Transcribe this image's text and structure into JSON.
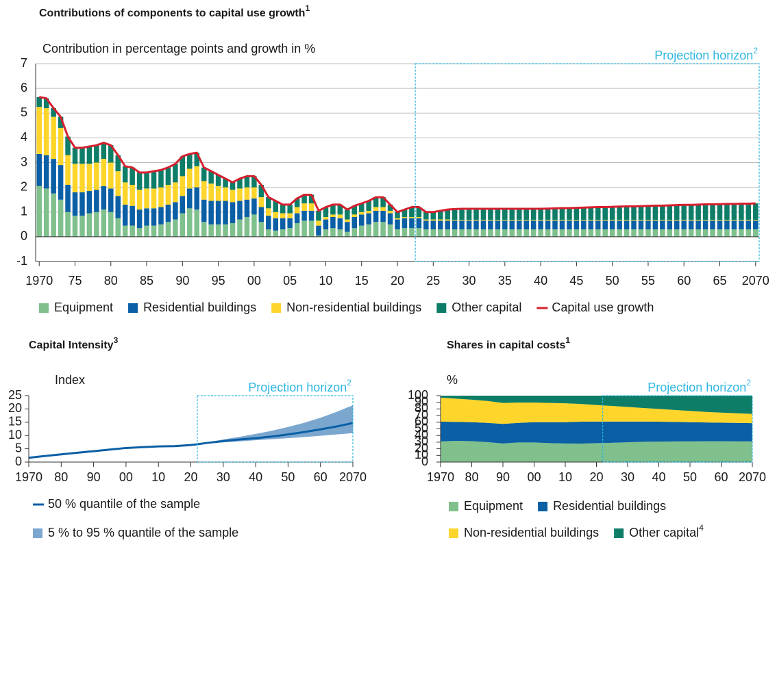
{
  "chart_data": [
    {
      "type": "bar",
      "title": "Contributions of components to capital use growth",
      "title_note": "1",
      "y_label": "Contribution in percentage points and growth in %",
      "annotation": "Projection horizon",
      "annotation_note": "2",
      "projection_start": 2022.5,
      "xlim": [
        1969.5,
        2070.5
      ],
      "ylim": [
        -1,
        7
      ],
      "grid": true,
      "stacked": true,
      "yticks": [
        -1,
        0,
        1,
        2,
        3,
        4,
        5,
        6,
        7
      ],
      "xticks": [
        1970,
        {
          "value": 1975,
          "label": "75"
        },
        {
          "value": 1980,
          "label": "80"
        },
        {
          "value": 1985,
          "label": "85"
        },
        {
          "value": 1990,
          "label": "90"
        },
        {
          "value": 1995,
          "label": "95"
        },
        {
          "value": 2000,
          "label": "00"
        },
        {
          "value": 2005,
          "label": "05"
        },
        {
          "value": 2010,
          "label": "10"
        },
        {
          "value": 2015,
          "label": "15"
        },
        {
          "value": 2020,
          "label": "20"
        },
        {
          "value": 2025,
          "label": "25"
        },
        {
          "value": 2030,
          "label": "30"
        },
        {
          "value": 2035,
          "label": "35"
        },
        {
          "value": 2040,
          "label": "40"
        },
        {
          "value": 2045,
          "label": "45"
        },
        {
          "value": 2050,
          "label": "50"
        },
        {
          "value": 2055,
          "label": "55"
        },
        {
          "value": 2060,
          "label": "60"
        },
        {
          "value": 2065,
          "label": "65"
        },
        2070
      ],
      "x": [
        1970,
        1971,
        1972,
        1973,
        1974,
        1975,
        1976,
        1977,
        1978,
        1979,
        1980,
        1981,
        1982,
        1983,
        1984,
        1985,
        1986,
        1987,
        1988,
        1989,
        1990,
        1991,
        1992,
        1993,
        1994,
        1995,
        1996,
        1997,
        1998,
        1999,
        2000,
        2001,
        2002,
        2003,
        2004,
        2005,
        2006,
        2007,
        2008,
        2009,
        2010,
        2011,
        2012,
        2013,
        2014,
        2015,
        2016,
        2017,
        2018,
        2019,
        2020,
        2021,
        2022,
        2023,
        2024,
        2025,
        2026,
        2027,
        2028,
        2029,
        2030,
        2031,
        2032,
        2033,
        2034,
        2035,
        2036,
        2037,
        2038,
        2039,
        2040,
        2041,
        2042,
        2043,
        2044,
        2045,
        2046,
        2047,
        2048,
        2049,
        2050,
        2051,
        2052,
        2053,
        2054,
        2055,
        2056,
        2057,
        2058,
        2059,
        2060,
        2061,
        2062,
        2063,
        2064,
        2065,
        2066,
        2067,
        2068,
        2069,
        2070
      ],
      "series": [
        {
          "name": "Equipment",
          "color": "#7fc08d",
          "values": [
            2.05,
            1.95,
            1.75,
            1.5,
            1.0,
            0.85,
            0.85,
            0.95,
            1.0,
            1.1,
            1.0,
            0.75,
            0.45,
            0.45,
            0.35,
            0.45,
            0.45,
            0.5,
            0.6,
            0.7,
            0.95,
            1.15,
            1.1,
            0.6,
            0.5,
            0.5,
            0.5,
            0.55,
            0.7,
            0.8,
            0.9,
            0.6,
            0.3,
            0.25,
            0.3,
            0.35,
            0.55,
            0.65,
            0.65,
            0.05,
            0.3,
            0.35,
            0.3,
            0.2,
            0.35,
            0.45,
            0.5,
            0.6,
            0.6,
            0.5,
            0.3,
            0.35,
            0.35,
            0.35,
            0.3,
            0.3,
            0.3,
            0.3,
            0.3,
            0.3,
            0.3,
            0.3,
            0.3,
            0.3,
            0.3,
            0.3,
            0.3,
            0.3,
            0.3,
            0.3,
            0.3,
            0.3,
            0.3,
            0.3,
            0.3,
            0.3,
            0.3,
            0.3,
            0.3,
            0.3,
            0.3,
            0.3,
            0.3,
            0.3,
            0.3,
            0.3,
            0.3,
            0.3,
            0.3,
            0.3,
            0.3,
            0.3,
            0.3,
            0.3,
            0.3,
            0.3,
            0.3,
            0.3,
            0.3,
            0.3,
            0.3
          ]
        },
        {
          "name": "Residential buildings",
          "color": "#0a5fa5",
          "values": [
            1.3,
            1.35,
            1.4,
            1.4,
            1.1,
            0.95,
            0.95,
            0.9,
            0.9,
            0.95,
            0.95,
            0.9,
            0.85,
            0.8,
            0.75,
            0.7,
            0.7,
            0.7,
            0.7,
            0.7,
            0.7,
            0.8,
            0.9,
            0.9,
            0.95,
            0.95,
            0.95,
            0.85,
            0.75,
            0.7,
            0.65,
            0.6,
            0.55,
            0.5,
            0.45,
            0.4,
            0.4,
            0.4,
            0.4,
            0.4,
            0.4,
            0.45,
            0.45,
            0.4,
            0.45,
            0.45,
            0.45,
            0.45,
            0.45,
            0.45,
            0.4,
            0.4,
            0.4,
            0.4,
            0.35,
            0.35,
            0.35,
            0.35,
            0.35,
            0.35,
            0.35,
            0.35,
            0.35,
            0.35,
            0.35,
            0.35,
            0.35,
            0.35,
            0.35,
            0.35,
            0.35,
            0.35,
            0.35,
            0.35,
            0.35,
            0.35,
            0.35,
            0.35,
            0.35,
            0.35,
            0.35,
            0.35,
            0.35,
            0.35,
            0.35,
            0.35,
            0.35,
            0.35,
            0.35,
            0.35,
            0.35,
            0.35,
            0.35,
            0.35,
            0.35,
            0.35,
            0.35,
            0.35,
            0.35,
            0.35,
            0.35
          ]
        },
        {
          "name": "Non-residential buildings",
          "color": "#fdd52b",
          "values": [
            1.9,
            1.9,
            1.7,
            1.5,
            1.2,
            1.15,
            1.15,
            1.1,
            1.1,
            1.1,
            1.05,
            1.0,
            0.9,
            0.85,
            0.8,
            0.8,
            0.8,
            0.8,
            0.8,
            0.8,
            0.8,
            0.8,
            0.85,
            0.75,
            0.7,
            0.6,
            0.55,
            0.5,
            0.5,
            0.5,
            0.45,
            0.4,
            0.3,
            0.25,
            0.2,
            0.2,
            0.25,
            0.3,
            0.3,
            0.2,
            0.1,
            0.1,
            0.15,
            0.1,
            0.1,
            0.1,
            0.1,
            0.15,
            0.15,
            0.1,
            0.05,
            0.05,
            0.05,
            0.05,
            0.05,
            0.05,
            0.05,
            0.05,
            0.03,
            0.03,
            0.03,
            0.03,
            0.03,
            0.03,
            0.03,
            0.03,
            0.03,
            0.03,
            0.03,
            0.03,
            0.03,
            0.03,
            0.03,
            0.03,
            0.03,
            0.03,
            0.03,
            0.03,
            0.03,
            0.03,
            0.03,
            0.03,
            0.03,
            0.03,
            0.03,
            0.03,
            0.03,
            0.03,
            0.03,
            0.03,
            0.03,
            0.03,
            0.03,
            0.03,
            0.03,
            0.03,
            0.03,
            0.03,
            0.03,
            0.03,
            0.03
          ]
        },
        {
          "name": "Other capital",
          "color": "#0d7d68",
          "values": [
            0.4,
            0.4,
            0.35,
            0.45,
            0.75,
            0.65,
            0.65,
            0.7,
            0.7,
            0.65,
            0.7,
            0.65,
            0.65,
            0.7,
            0.7,
            0.65,
            0.7,
            0.7,
            0.7,
            0.75,
            0.8,
            0.6,
            0.55,
            0.55,
            0.5,
            0.45,
            0.35,
            0.3,
            0.4,
            0.45,
            0.45,
            0.5,
            0.45,
            0.45,
            0.35,
            0.35,
            0.35,
            0.35,
            0.35,
            0.4,
            0.4,
            0.4,
            0.4,
            0.4,
            0.35,
            0.35,
            0.4,
            0.4,
            0.4,
            0.25,
            0.25,
            0.3,
            0.4,
            0.4,
            0.3,
            0.3,
            0.35,
            0.4,
            0.44,
            0.45,
            0.45,
            0.45,
            0.45,
            0.45,
            0.45,
            0.45,
            0.45,
            0.45,
            0.45,
            0.45,
            0.45,
            0.46,
            0.47,
            0.48,
            0.48,
            0.49,
            0.5,
            0.51,
            0.52,
            0.52,
            0.53,
            0.54,
            0.55,
            0.55,
            0.56,
            0.57,
            0.58,
            0.58,
            0.59,
            0.6,
            0.61,
            0.61,
            0.62,
            0.63,
            0.63,
            0.64,
            0.65,
            0.65,
            0.66,
            0.66,
            0.67
          ]
        },
        {
          "name": "Capital use growth",
          "color": "#d61f2e",
          "type": "line",
          "values": [
            5.65,
            5.6,
            5.2,
            4.85,
            4.05,
            3.6,
            3.6,
            3.65,
            3.7,
            3.8,
            3.7,
            3.3,
            2.85,
            2.8,
            2.6,
            2.6,
            2.65,
            2.7,
            2.8,
            2.95,
            3.25,
            3.35,
            3.4,
            2.8,
            2.65,
            2.5,
            2.35,
            2.2,
            2.35,
            2.45,
            2.45,
            2.1,
            1.6,
            1.45,
            1.3,
            1.3,
            1.55,
            1.7,
            1.7,
            1.05,
            1.2,
            1.3,
            1.3,
            1.1,
            1.25,
            1.35,
            1.45,
            1.6,
            1.6,
            1.3,
            1.0,
            1.1,
            1.2,
            1.2,
            1.0,
            1.0,
            1.05,
            1.1,
            1.12,
            1.13,
            1.13,
            1.13,
            1.13,
            1.13,
            1.13,
            1.13,
            1.13,
            1.13,
            1.13,
            1.13,
            1.13,
            1.14,
            1.15,
            1.16,
            1.16,
            1.17,
            1.18,
            1.19,
            1.2,
            1.2,
            1.21,
            1.22,
            1.23,
            1.23,
            1.24,
            1.25,
            1.26,
            1.26,
            1.27,
            1.28,
            1.29,
            1.29,
            1.3,
            1.31,
            1.31,
            1.32,
            1.33,
            1.33,
            1.34,
            1.34,
            1.35
          ]
        }
      ]
    },
    {
      "type": "line",
      "title": "Capital Intensity",
      "title_note": "3",
      "y_label": "Index",
      "annotation": "Projection horizon",
      "annotation_note": "2",
      "projection_start": 2022,
      "xlim": [
        1970,
        2070
      ],
      "ylim": [
        0,
        25
      ],
      "grid": false,
      "yticks": [
        0,
        5,
        10,
        15,
        20,
        25
      ],
      "xticks": [
        1970,
        {
          "value": 1980,
          "label": "80"
        },
        {
          "value": 1990,
          "label": "90"
        },
        {
          "value": 2000,
          "label": "00"
        },
        {
          "value": 2010,
          "label": "10"
        },
        {
          "value": 2020,
          "label": "20"
        },
        {
          "value": 2030,
          "label": "30"
        },
        {
          "value": 2040,
          "label": "40"
        },
        {
          "value": 2050,
          "label": "50"
        },
        {
          "value": 2060,
          "label": "60"
        },
        2070
      ],
      "x": [
        1970,
        1975,
        1980,
        1985,
        1990,
        1995,
        2000,
        2005,
        2010,
        2015,
        2020,
        2022,
        2025,
        2030,
        2035,
        2040,
        2045,
        2050,
        2055,
        2060,
        2065,
        2070
      ],
      "series": [
        {
          "name": "50 % quantile of the sample",
          "color": "#0a5fa5",
          "values": [
            1.6,
            2.3,
            2.9,
            3.5,
            4.1,
            4.7,
            5.3,
            5.6,
            5.9,
            6.0,
            6.4,
            6.7,
            7.2,
            7.9,
            8.5,
            9.0,
            9.6,
            10.4,
            11.3,
            12.3,
            13.4,
            14.7
          ]
        },
        {
          "name": "5 % to 95 % quantile of the sample",
          "color": "#7ba7cf",
          "lower": [
            null,
            null,
            null,
            null,
            null,
            null,
            null,
            null,
            null,
            null,
            null,
            6.7,
            7.0,
            7.4,
            7.8,
            8.2,
            8.6,
            9.0,
            9.4,
            9.9,
            10.4,
            10.9
          ],
          "upper": [
            null,
            null,
            null,
            null,
            null,
            null,
            null,
            null,
            null,
            null,
            null,
            6.7,
            7.4,
            8.5,
            9.5,
            10.6,
            11.8,
            13.2,
            14.8,
            16.7,
            18.9,
            21.4
          ]
        }
      ]
    },
    {
      "type": "area",
      "title": "Shares in capital costs",
      "title_note": "1",
      "y_label": "%",
      "annotation": "Projection horizon",
      "annotation_note": "2",
      "projection_start": 2022,
      "xlim": [
        1970,
        2070
      ],
      "ylim": [
        0,
        100
      ],
      "grid": false,
      "stacked": true,
      "yticks": [
        0,
        10,
        20,
        30,
        40,
        50,
        60,
        70,
        80,
        90,
        100
      ],
      "xticks": [
        1970,
        {
          "value": 1980,
          "label": "80"
        },
        {
          "value": 1990,
          "label": "90"
        },
        {
          "value": 2000,
          "label": "00"
        },
        {
          "value": 2010,
          "label": "10"
        },
        {
          "value": 2020,
          "label": "20"
        },
        {
          "value": 2030,
          "label": "30"
        },
        {
          "value": 2040,
          "label": "40"
        },
        {
          "value": 2050,
          "label": "50"
        },
        {
          "value": 2060,
          "label": "60"
        },
        2070
      ],
      "x": [
        1970,
        1975,
        1980,
        1985,
        1990,
        1995,
        2000,
        2005,
        2010,
        2015,
        2020,
        2025,
        2030,
        2035,
        2040,
        2045,
        2050,
        2055,
        2060,
        2065,
        2070
      ],
      "series": [
        {
          "name": "Equipment",
          "color": "#7fc08d",
          "values": [
            31,
            32,
            31.5,
            30,
            28,
            29.5,
            29.5,
            28.5,
            28,
            27.8,
            28.5,
            29,
            29.8,
            30.5,
            30.8,
            31,
            31.2,
            31.3,
            31.3,
            31.2,
            31
          ]
        },
        {
          "name": "Residential buildings",
          "color": "#0a5fa5",
          "values": [
            30,
            28.5,
            28.5,
            29,
            29.5,
            29.5,
            30.5,
            31.5,
            32,
            33,
            32.5,
            32,
            31.2,
            30.5,
            30,
            29.5,
            28.8,
            28.4,
            28,
            27.8,
            27.6
          ]
        },
        {
          "name": "Non-residential buildings",
          "color": "#fdd52b",
          "values": [
            36,
            35,
            34,
            33,
            31.5,
            30.5,
            29.5,
            29,
            28.5,
            26.7,
            25,
            23.5,
            22,
            20.5,
            19.2,
            18,
            17,
            15.8,
            15.2,
            14.5,
            13.9
          ]
        },
        {
          "name": "Other capital",
          "note": "4",
          "color": "#0d7d68",
          "values": [
            3,
            4.5,
            6,
            8,
            11,
            10.5,
            10.5,
            11,
            11.5,
            12.5,
            14,
            15.5,
            17,
            18.5,
            20,
            21.5,
            23,
            24.5,
            25.5,
            26.5,
            27.5
          ]
        }
      ]
    }
  ]
}
